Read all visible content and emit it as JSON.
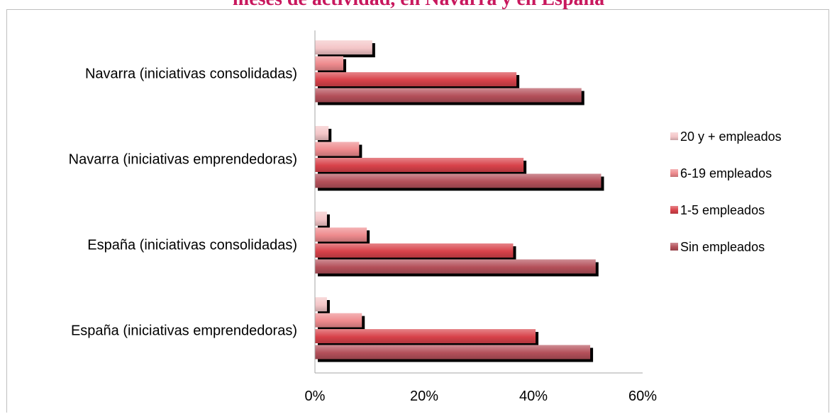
{
  "chart_data": {
    "type": "bar",
    "orientation": "horizontal",
    "title": "meses de actividad, en Navarra y en España",
    "categories": [
      "Navarra (iniciativas consolidadas)",
      "Navarra (iniciativas emprendedoras)",
      "España (iniciativas consolidadas)",
      "España (iniciativas emprendedoras)"
    ],
    "series": [
      {
        "name": "20 y + empleados",
        "values": [
          10.5,
          2.5,
          2.2,
          2.2
        ],
        "color": "#f4c6c8"
      },
      {
        "name": "6-19 empleados",
        "values": [
          5.2,
          8.1,
          9.5,
          8.6
        ],
        "color": "#ee8a8d"
      },
      {
        "name": "1-5 empleados",
        "values": [
          36.9,
          38.2,
          36.3,
          40.4
        ],
        "color": "#d8424a"
      },
      {
        "name": "Sin empleados",
        "values": [
          48.8,
          52.4,
          51.4,
          50.4
        ],
        "color": "#b4505a"
      }
    ],
    "xlim": [
      0,
      60
    ],
    "xticks": [
      "0%",
      "20%",
      "40%",
      "60%"
    ],
    "legend_position": "right",
    "grid": false
  }
}
